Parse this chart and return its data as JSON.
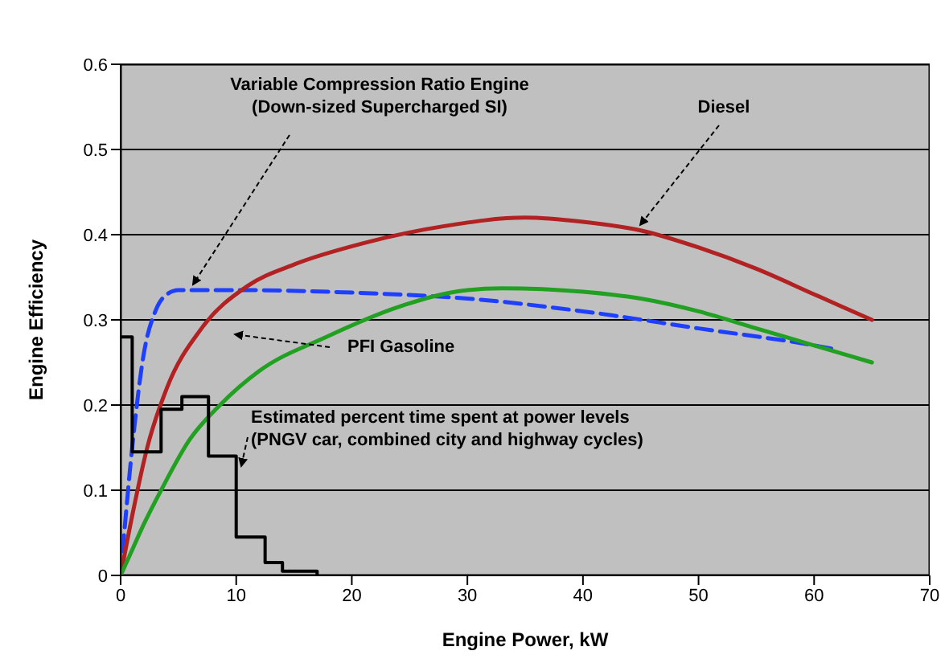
{
  "chart_data": {
    "type": "line",
    "xlabel": "Engine Power, kW",
    "ylabel": "Engine Efficiency",
    "xlim": [
      0,
      70
    ],
    "xticks": [
      0,
      10,
      20,
      30,
      40,
      50,
      60,
      70
    ],
    "ylim": [
      0,
      0.6
    ],
    "yticks": [
      0,
      0.1,
      0.2,
      0.3,
      0.4,
      0.5,
      0.6
    ],
    "grid": "y",
    "marker": "none",
    "series": [
      {
        "name": "Variable Compression Ratio Engine (Down-sized Supercharged SI)",
        "color": "#1f3fff",
        "line_style": "dashed",
        "x": [
          0,
          1,
          2,
          3,
          4,
          5,
          10,
          20,
          30,
          40,
          50,
          60,
          62
        ],
        "values": [
          0,
          0.15,
          0.26,
          0.31,
          0.33,
          0.335,
          0.335,
          0.332,
          0.325,
          0.31,
          0.29,
          0.27,
          0.265
        ]
      },
      {
        "name": "Diesel",
        "color": "#b22222",
        "x": [
          0,
          1,
          2.3,
          4,
          7,
          11,
          15,
          21,
          28,
          35,
          40,
          45,
          50,
          55,
          60,
          65
        ],
        "values": [
          0,
          0.07,
          0.15,
          0.22,
          0.29,
          0.34,
          0.365,
          0.39,
          0.41,
          0.42,
          0.415,
          0.405,
          0.385,
          0.36,
          0.33,
          0.3
        ]
      },
      {
        "name": "PFI Gasoline",
        "color": "#22a022",
        "x": [
          0,
          1,
          2,
          3.5,
          6,
          8.6,
          12,
          17.8,
          24,
          30,
          33,
          40,
          45,
          50,
          55,
          60,
          65
        ],
        "values": [
          0,
          0.03,
          0.06,
          0.1,
          0.16,
          0.2,
          0.24,
          0.28,
          0.315,
          0.335,
          0.337,
          0.333,
          0.325,
          0.31,
          0.29,
          0.27,
          0.25
        ]
      },
      {
        "name": "Estimated percent time spent at power levels (PNGV car, combined city and highway cycles)",
        "type": "step",
        "color": "#000000",
        "x": [
          0,
          1,
          3.5,
          5.3,
          7.6,
          10,
          12.5,
          14,
          17
        ],
        "values": [
          0.28,
          0.145,
          0.195,
          0.21,
          0.14,
          0.045,
          0.015,
          0.005,
          0
        ]
      }
    ]
  }
}
